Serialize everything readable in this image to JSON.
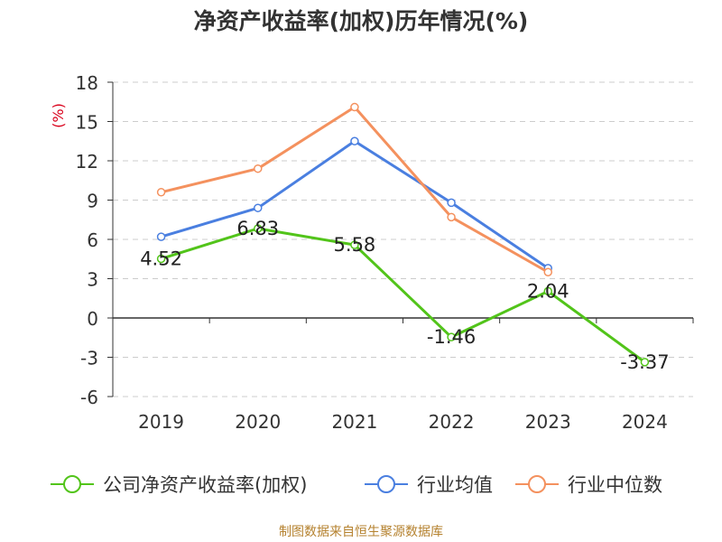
{
  "chart_data": {
    "type": "line",
    "title": "净资产收益率(加权)历年情况(%)",
    "ylabel": "(%)",
    "categories": [
      "2019",
      "2020",
      "2021",
      "2022",
      "2023",
      "2024"
    ],
    "yticks": [
      "18",
      "15",
      "12",
      "9",
      "6",
      "3",
      "0",
      "-3",
      "-6"
    ],
    "ylim": [
      -6,
      18
    ],
    "grid": true,
    "legend_position": "bottom",
    "series": [
      {
        "name": "公司净资产收益率(加权)",
        "color": "#52c41a",
        "values": [
          4.52,
          6.83,
          5.58,
          -1.46,
          2.04,
          -3.37
        ],
        "labels": [
          "4.52",
          "6.83",
          "5.58",
          "-1.46",
          "2.04",
          "-3.37"
        ]
      },
      {
        "name": "行业均值",
        "color": "#4a7fe0",
        "values": [
          6.2,
          8.4,
          13.5,
          8.8,
          3.8,
          null
        ]
      },
      {
        "name": "行业中位数",
        "color": "#f4915e",
        "values": [
          9.6,
          11.4,
          16.1,
          7.7,
          3.5,
          null
        ]
      }
    ]
  },
  "footer": {
    "source": "制图数据来自恒生聚源数据库"
  }
}
